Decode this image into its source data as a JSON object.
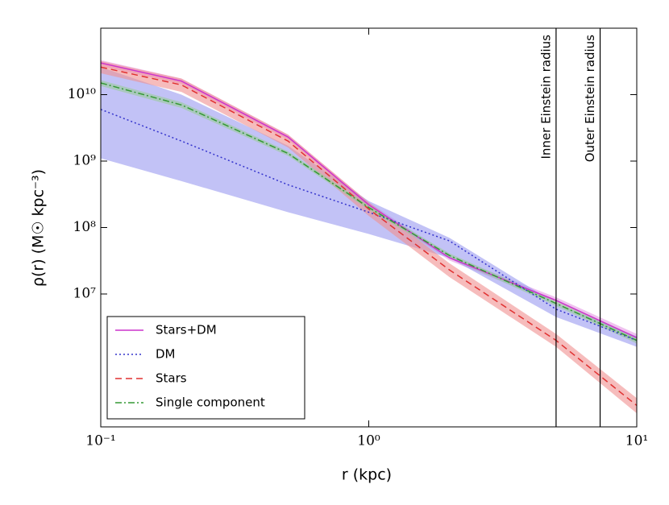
{
  "chart_data": {
    "type": "line",
    "xlabel": "r (kpc)",
    "ylabel": "ρ(r) (M☉ kpc⁻³)",
    "xscale": "log",
    "yscale": "log",
    "xlim": [
      0.1,
      10
    ],
    "ylim": [
      100000,
      100000000000
    ],
    "xticks": [
      {
        "value": 0.1,
        "label": "10⁻¹"
      },
      {
        "value": 1,
        "label": "10⁰"
      },
      {
        "value": 10,
        "label": "10¹"
      }
    ],
    "yticks": [
      {
        "value": 10000000,
        "label": "10⁷"
      },
      {
        "value": 100000000,
        "label": "10⁸"
      },
      {
        "value": 1000000000,
        "label": "10⁹"
      },
      {
        "value": 10000000000,
        "label": "10¹⁰"
      }
    ],
    "legend": "lower left",
    "x": [
      0.1,
      0.2,
      0.5,
      1,
      2,
      5,
      10
    ],
    "series": [
      {
        "name": "Stars+DM",
        "color": "#cc33cc",
        "band_color": "#e59ae5",
        "style": "solid",
        "values": [
          30000000000,
          16000000000,
          2300000000,
          220000000,
          35000000,
          8000000,
          2200000
        ],
        "lower": [
          27000000000,
          14500000000,
          2100000000,
          200000000,
          32000000,
          7200000,
          1900000
        ],
        "upper": [
          33000000000,
          17500000000,
          2500000000,
          240000000,
          38000000,
          8900000,
          2500000
        ]
      },
      {
        "name": "DM",
        "color": "#3333cc",
        "band_color": "#9a9af0",
        "style": "dotted",
        "values": [
          6000000000,
          2000000000,
          440000000,
          170000000,
          63000000,
          5900000,
          2000000
        ],
        "lower": [
          1100000000,
          500000000,
          170000000,
          80000000,
          35000000,
          4500000,
          1600000
        ],
        "upper": [
          26000000000,
          10000000000,
          1700000000,
          250000000,
          70000000,
          7200000,
          2300000
        ]
      },
      {
        "name": "Stars",
        "color": "#e03030",
        "band_color": "#f09090",
        "style": "dashed",
        "values": [
          26000000000,
          14000000000,
          2000000000,
          190000000,
          23000000,
          2000000,
          210000
        ],
        "lower": [
          21000000000,
          11000000000,
          1600000000,
          150000000,
          18000000,
          1600000,
          160000
        ],
        "upper": [
          32000000000,
          17500000000,
          2500000000,
          240000000,
          29000000,
          2500000,
          270000
        ]
      },
      {
        "name": "Single component",
        "color": "#339933",
        "band_color": "#99cc99",
        "style": "dashdot",
        "values": [
          15000000000,
          7000000000,
          1300000000,
          200000000,
          38000000,
          7200000,
          2000000
        ],
        "lower": [
          13500000000,
          6300000000,
          1200000000,
          185000000,
          35000000,
          6600000,
          1800000
        ],
        "upper": [
          16500000000,
          7700000000,
          1400000000,
          215000000,
          41000000,
          7800000,
          2200000
        ]
      }
    ],
    "annotations": [
      {
        "text": "Inner Einstein radius",
        "x": 5.0
      },
      {
        "text": "Outer Einstein radius",
        "x": 7.3
      }
    ]
  }
}
